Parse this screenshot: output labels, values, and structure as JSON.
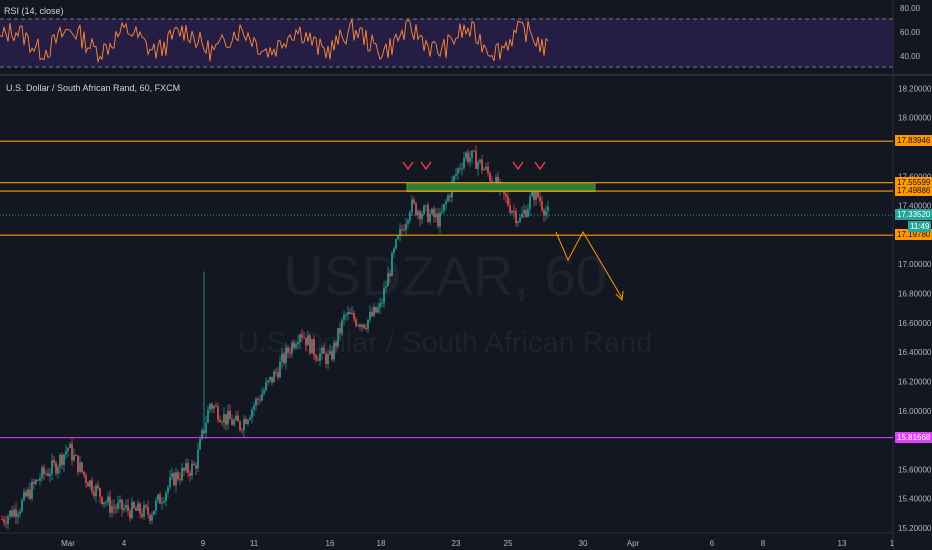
{
  "rsi": {
    "title": "RSI (14, close)",
    "levels": [
      80.0,
      60.0,
      40.0
    ],
    "level_labels": [
      "80.00",
      "60.00",
      "40.00"
    ]
  },
  "main": {
    "title": "U.S. Dollar / South African Rand, 60, FXCM",
    "watermark_symbol": "USDZAR, 60",
    "watermark_name": "U.S. Dollar / South African Rand"
  },
  "chart_data": {
    "type": "candlestick",
    "symbol": "USDZAR",
    "timeframe": "60",
    "source": "FXCM",
    "x_tick_labels": [
      "Mar",
      "4",
      "9",
      "11",
      "16",
      "18",
      "23",
      "25",
      "30",
      "Apr",
      "6",
      "8",
      "13",
      "1"
    ],
    "y_tick_labels": [
      "18.20000",
      "18.00000",
      "17.60000",
      "17.40000",
      "17.00000",
      "16.80000",
      "16.60000",
      "16.40000",
      "16.20000",
      "16.00000",
      "15.60000",
      "15.40000",
      "15.20000"
    ],
    "ylim": [
      15.2,
      18.25
    ],
    "price_levels": [
      {
        "value": 17.83946,
        "label": "17.83946",
        "color": "#ff9800"
      },
      {
        "value": 17.55599,
        "label": "17.55599",
        "color": "#ff9800"
      },
      {
        "value": 17.49886,
        "label": "17.49886",
        "color": "#ff9800"
      },
      {
        "value": 17.3352,
        "label": "17.33520",
        "color": "#26a69a"
      },
      {
        "value": 17.1978,
        "label": "17.19780",
        "color": "#ff9800"
      },
      {
        "value": 15.81668,
        "label": "15.81668",
        "color": "#e040fb"
      }
    ],
    "countdown_label": "11:49",
    "last_price": 17.3352,
    "annotations": {
      "zone": {
        "top": 17.555,
        "bottom": 17.495,
        "color": "#2e7d32"
      },
      "projected_path_points": [
        [
          17.19,
          0
        ],
        [
          16.97,
          1
        ],
        [
          17.18,
          2
        ],
        [
          16.72,
          3
        ]
      ],
      "markers": 4
    }
  }
}
